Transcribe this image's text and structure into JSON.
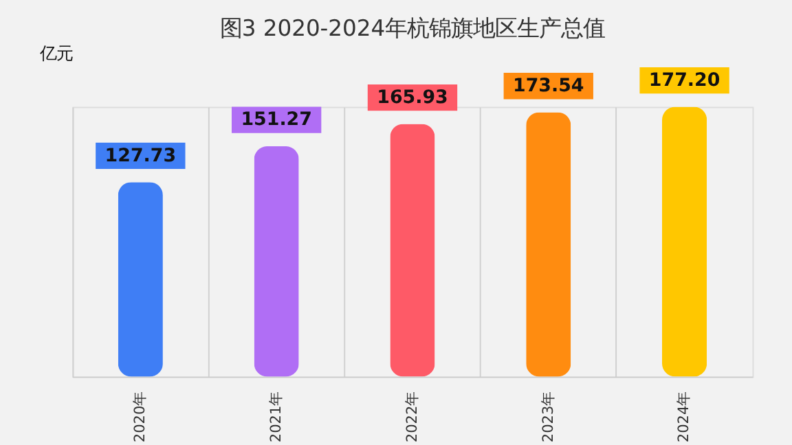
{
  "chart_data": {
    "type": "bar",
    "title": "图3  2020-2024年杭锦旗地区生产总值",
    "ylabel": "亿元",
    "categories": [
      "2020年",
      "2021年",
      "2022年",
      "2023年",
      "2024年"
    ],
    "values": [
      127.73,
      151.27,
      165.93,
      173.54,
      177.2
    ],
    "value_labels": [
      "127.73",
      "151.27",
      "165.93",
      "173.54",
      "177.20"
    ],
    "colors": [
      "#3f7ef5",
      "#b06ef5",
      "#fe5a67",
      "#ff8c10",
      "#ffc700"
    ],
    "grid": "x"
  }
}
